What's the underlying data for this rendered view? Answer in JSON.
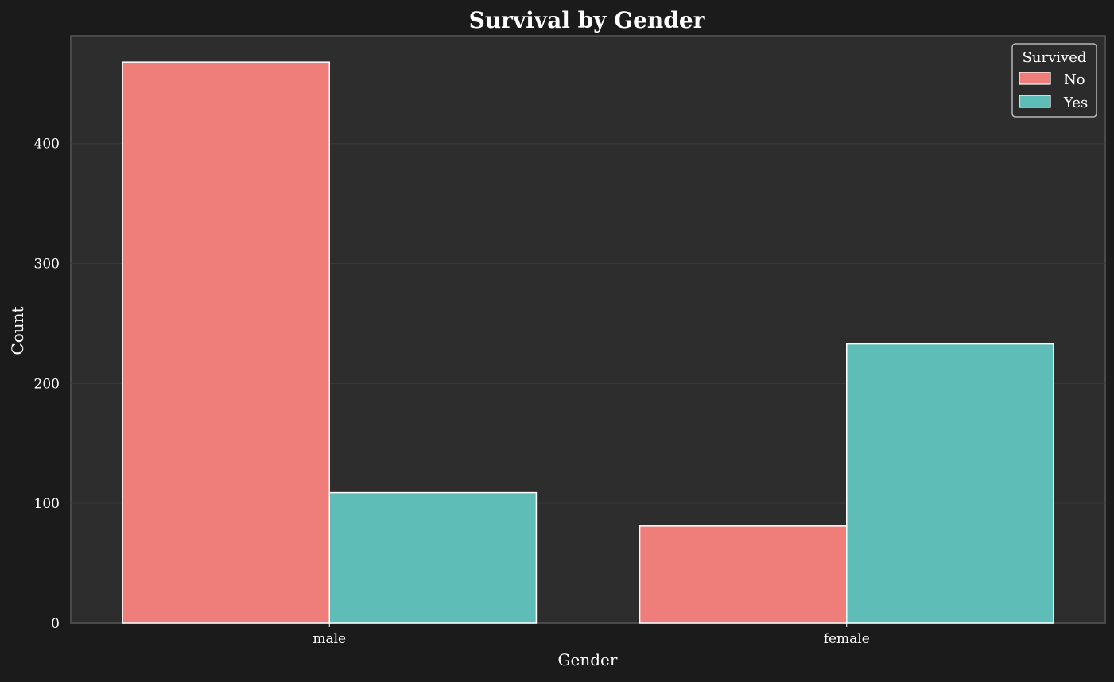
{
  "chart_data": {
    "type": "bar",
    "title": "Survival by Gender",
    "xlabel": "Gender",
    "ylabel": "Count",
    "categories": [
      "male",
      "female"
    ],
    "series": [
      {
        "name": "No",
        "values": [
          468,
          81
        ]
      },
      {
        "name": "Yes",
        "values": [
          109,
          233
        ]
      }
    ],
    "ylim": [
      0,
      490
    ],
    "yticks": [
      0,
      100,
      200,
      300,
      400
    ],
    "grid": true,
    "legend": {
      "title": "Survived",
      "placement": "top-right"
    },
    "colors": {
      "background": "#1b1b1b",
      "plot_background": "#2d2d2d",
      "No": "#ef7e7b",
      "Yes": "#5fbdb8",
      "bar_edge": "#ffffff",
      "text": "#ffffff",
      "grid": "#3a3a3a",
      "frame": "#4a4a4a"
    }
  }
}
